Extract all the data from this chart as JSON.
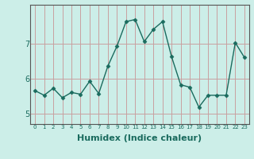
{
  "x": [
    0,
    1,
    2,
    3,
    4,
    5,
    6,
    7,
    8,
    9,
    10,
    11,
    12,
    13,
    14,
    15,
    16,
    17,
    18,
    19,
    20,
    21,
    22,
    23
  ],
  "y": [
    5.65,
    5.52,
    5.72,
    5.45,
    5.6,
    5.55,
    5.92,
    5.57,
    6.35,
    6.92,
    7.62,
    7.68,
    7.05,
    7.4,
    7.62,
    6.62,
    5.82,
    5.75,
    5.18,
    5.52,
    5.52,
    5.52,
    7.02,
    6.6
  ],
  "line_color": "#1a6b5e",
  "marker": "D",
  "marker_size": 2.5,
  "linewidth": 1.0,
  "xlabel": "Humidex (Indice chaleur)",
  "xlabel_fontsize": 8,
  "xlabel_fontweight": "bold",
  "yticks": [
    5,
    6,
    7
  ],
  "ylim": [
    4.7,
    8.1
  ],
  "xlim": [
    -0.5,
    23.5
  ],
  "xticks": [
    0,
    1,
    2,
    3,
    4,
    5,
    6,
    7,
    8,
    9,
    10,
    11,
    12,
    13,
    14,
    15,
    16,
    17,
    18,
    19,
    20,
    21,
    22,
    23
  ],
  "grid_color": "#c8a0a0",
  "bg_color": "#cceee8",
  "tick_color": "#1a6b5e",
  "spine_color": "#555555"
}
